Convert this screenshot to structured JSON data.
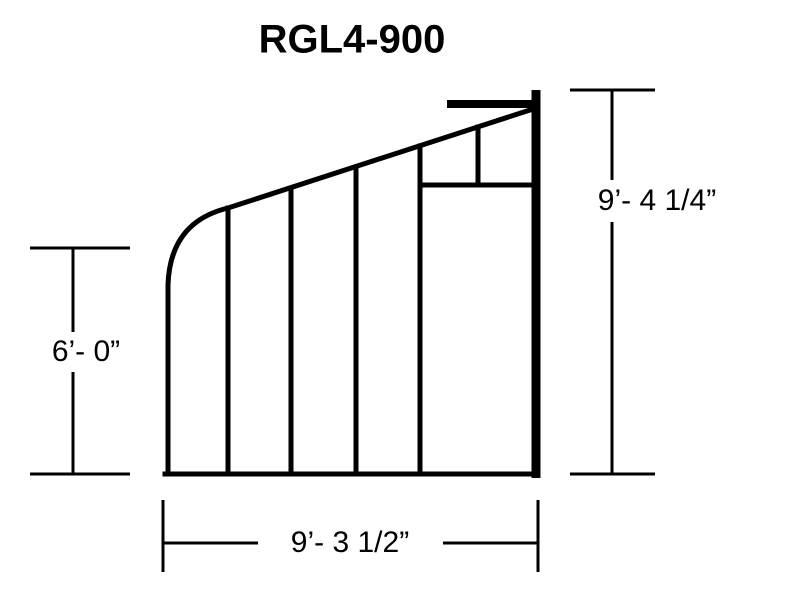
{
  "title": "RGL4-900",
  "dimensions": {
    "left_height": "6’- 0”",
    "right_height": "9’- 4 1/4”",
    "width": "9’- 3 1/2”"
  }
}
